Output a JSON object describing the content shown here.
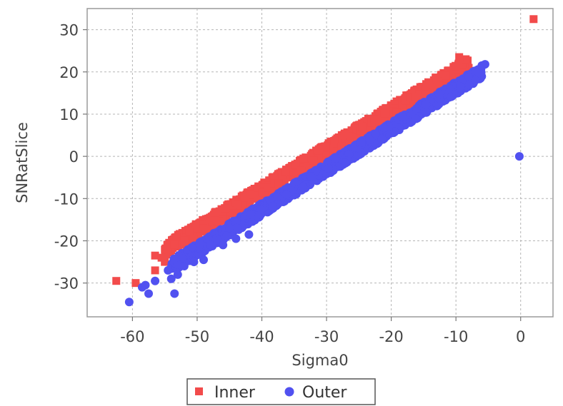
{
  "chart_data": {
    "type": "scatter",
    "title": "",
    "xlabel": "Sigma0",
    "ylabel": "SNRatSlice",
    "xlim": [
      -67,
      5
    ],
    "ylim": [
      -38,
      35
    ],
    "x_ticks": [
      -60,
      -50,
      -40,
      -30,
      -20,
      -10,
      0
    ],
    "y_ticks": [
      -30,
      -20,
      -10,
      0,
      10,
      20,
      30
    ],
    "x_tick_labels": [
      "-60",
      "-50",
      "-40",
      "-30",
      "-20",
      "-10",
      "0"
    ],
    "y_tick_labels": [
      "-30",
      "-20",
      "-10",
      "0",
      "10",
      "20",
      "30"
    ],
    "grid": true,
    "legend_position": "bottom-center",
    "series": [
      {
        "name": "Inner",
        "marker": "square",
        "color": "#f24b4b",
        "band": {
          "x_start": -55,
          "x_end": -8,
          "y_at_start": -22,
          "y_at_end": 22,
          "width": 3
        },
        "points": [
          [
            2,
            32.5
          ],
          [
            -62.5,
            -29.5
          ],
          [
            -59.5,
            -30
          ],
          [
            -56.5,
            -23.5
          ],
          [
            -55.5,
            -24
          ],
          [
            -56.5,
            -27
          ],
          [
            -55,
            -25
          ],
          [
            -54.5,
            -22
          ],
          [
            -53.5,
            -21
          ],
          [
            -8.5,
            23
          ],
          [
            -9.5,
            23.5
          ],
          [
            -52,
            -20
          ],
          [
            -50.5,
            -19.5
          ],
          [
            -49,
            -17
          ]
        ]
      },
      {
        "name": "Outer",
        "marker": "circle",
        "color": "#5151f0",
        "band": {
          "x_start": -54,
          "x_end": -6,
          "y_at_start": -26,
          "y_at_end": 20,
          "width": 3
        },
        "points": [
          [
            -60.5,
            -34.5
          ],
          [
            -58.5,
            -31
          ],
          [
            -57.5,
            -32.5
          ],
          [
            -58,
            -30.5
          ],
          [
            -56.5,
            -29.5
          ],
          [
            -53.5,
            -32.5
          ],
          [
            -54.5,
            -27
          ],
          [
            -53,
            -28
          ],
          [
            -0.2,
            0
          ],
          [
            -6,
            21.5
          ],
          [
            -7,
            18
          ],
          [
            -52,
            -26
          ],
          [
            -50.5,
            -25
          ],
          [
            -49,
            -24.5
          ],
          [
            -48,
            -21
          ],
          [
            -46,
            -21
          ],
          [
            -44,
            -19.5
          ],
          [
            -42,
            -18.5
          ],
          [
            -54,
            -29
          ],
          [
            -5.5,
            21.8
          ]
        ]
      }
    ]
  }
}
